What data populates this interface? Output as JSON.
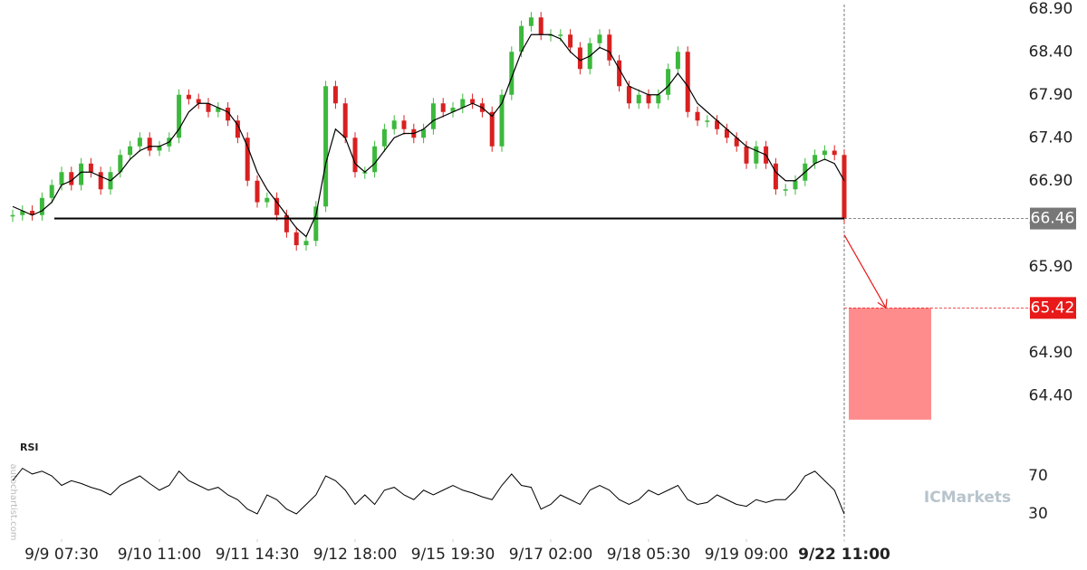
{
  "chart_data": {
    "type": "line",
    "xlim": [
      0,
      104
    ],
    "xticks": [
      {
        "value": 5,
        "label": "9/9 07:30"
      },
      {
        "value": 15,
        "label": "9/10 11:00"
      },
      {
        "value": 25,
        "label": "9/11 14:30"
      },
      {
        "value": 35,
        "label": "9/12 18:00"
      },
      {
        "value": 45,
        "label": "9/15 19:30"
      },
      {
        "value": 55,
        "label": "9/17 02:00"
      },
      {
        "value": 65,
        "label": "9/18 05:30"
      },
      {
        "value": 75,
        "label": "9/19 09:00"
      },
      {
        "value": 85,
        "label": "9/22 11:00"
      }
    ],
    "ylim": [
      63.95,
      68.95
    ],
    "yticks": [
      {
        "value": 64.4,
        "label": "64.40"
      },
      {
        "value": 64.9,
        "label": "64.90"
      },
      {
        "value": 65.4,
        "label": "65.40"
      },
      {
        "value": 65.9,
        "label": "65.90"
      },
      {
        "value": 66.4,
        "label": "66.40"
      },
      {
        "value": 66.9,
        "label": "66.90"
      },
      {
        "value": 67.4,
        "label": "67.40"
      },
      {
        "value": 67.9,
        "label": "67.90"
      },
      {
        "value": 68.4,
        "label": "68.40"
      },
      {
        "value": 68.9,
        "label": "68.90"
      }
    ],
    "up_color": "#3cb83c",
    "down_color": "#d92020",
    "series": [
      {
        "name": "Price",
        "color": "#3cb83c",
        "values": [
          66.5,
          66.55,
          66.5,
          66.7,
          66.85,
          67.0,
          66.85,
          67.1,
          67.0,
          66.8,
          67.0,
          67.2,
          67.3,
          67.4,
          67.25,
          67.3,
          67.4,
          67.9,
          67.85,
          67.8,
          67.7,
          67.75,
          67.6,
          67.4,
          66.9,
          66.65,
          66.7,
          66.5,
          66.3,
          66.15,
          66.2,
          66.6,
          68.0,
          67.8,
          67.4,
          67.0,
          67.0,
          67.3,
          67.5,
          67.6,
          67.5,
          67.4,
          67.5,
          67.8,
          67.7,
          67.75,
          67.85,
          67.8,
          67.7,
          67.3,
          67.9,
          68.4,
          68.7,
          68.8,
          68.6,
          68.6,
          68.6,
          68.45,
          68.2,
          68.5,
          68.6,
          68.3,
          68.0,
          67.8,
          67.9,
          67.8,
          67.9,
          68.2,
          68.4,
          67.7,
          67.6,
          67.6,
          67.5,
          67.4,
          67.3,
          67.1,
          67.3,
          67.1,
          66.8,
          66.8,
          66.9,
          67.1,
          67.2,
          67.25,
          67.2,
          66.46
        ]
      },
      {
        "name": "Moving average",
        "color": "#000000",
        "values": [
          66.6,
          66.55,
          66.5,
          66.55,
          66.65,
          66.85,
          66.9,
          67.0,
          67.0,
          66.95,
          66.9,
          67.0,
          67.15,
          67.25,
          67.3,
          67.3,
          67.35,
          67.5,
          67.7,
          67.8,
          67.8,
          67.75,
          67.7,
          67.55,
          67.3,
          67.0,
          66.8,
          66.65,
          66.5,
          66.35,
          66.25,
          66.5,
          67.1,
          67.5,
          67.4,
          67.1,
          67.0,
          67.1,
          67.25,
          67.4,
          67.45,
          67.45,
          67.5,
          67.6,
          67.65,
          67.7,
          67.75,
          67.8,
          67.75,
          67.65,
          67.8,
          68.1,
          68.4,
          68.6,
          68.6,
          68.6,
          68.55,
          68.4,
          68.3,
          68.35,
          68.45,
          68.4,
          68.2,
          68.0,
          67.95,
          67.9,
          67.9,
          68.0,
          68.15,
          68.0,
          67.8,
          67.7,
          67.6,
          67.5,
          67.4,
          67.3,
          67.25,
          67.2,
          67.0,
          66.9,
          66.9,
          67.0,
          67.1,
          67.15,
          67.1,
          66.9
        ]
      }
    ],
    "support_level": {
      "value": 66.46,
      "label": "66.46",
      "color": "#777777"
    },
    "target_level": {
      "value": 65.42,
      "label": "65.42",
      "color": "#e81919"
    },
    "target_zone": {
      "top": 65.42,
      "bottom": 64.12,
      "color": "#ff8c8c"
    },
    "rsi": {
      "title": "RSI",
      "color": "#000000",
      "ylim": [
        10,
        100
      ],
      "yticks": [
        30,
        70
      ],
      "values": [
        65,
        78,
        72,
        75,
        70,
        60,
        65,
        62,
        58,
        55,
        50,
        60,
        65,
        70,
        62,
        55,
        60,
        75,
        65,
        60,
        55,
        58,
        50,
        45,
        35,
        30,
        50,
        45,
        35,
        30,
        40,
        50,
        70,
        65,
        55,
        40,
        50,
        40,
        55,
        58,
        50,
        45,
        55,
        50,
        55,
        60,
        55,
        52,
        48,
        45,
        60,
        72,
        60,
        58,
        35,
        40,
        50,
        45,
        40,
        55,
        60,
        55,
        45,
        40,
        45,
        55,
        50,
        55,
        60,
        45,
        40,
        42,
        50,
        45,
        40,
        38,
        45,
        42,
        45,
        45,
        55,
        70,
        75,
        65,
        55,
        30
      ]
    },
    "watermark": "ICMarkets",
    "source": "autochartist.com"
  }
}
